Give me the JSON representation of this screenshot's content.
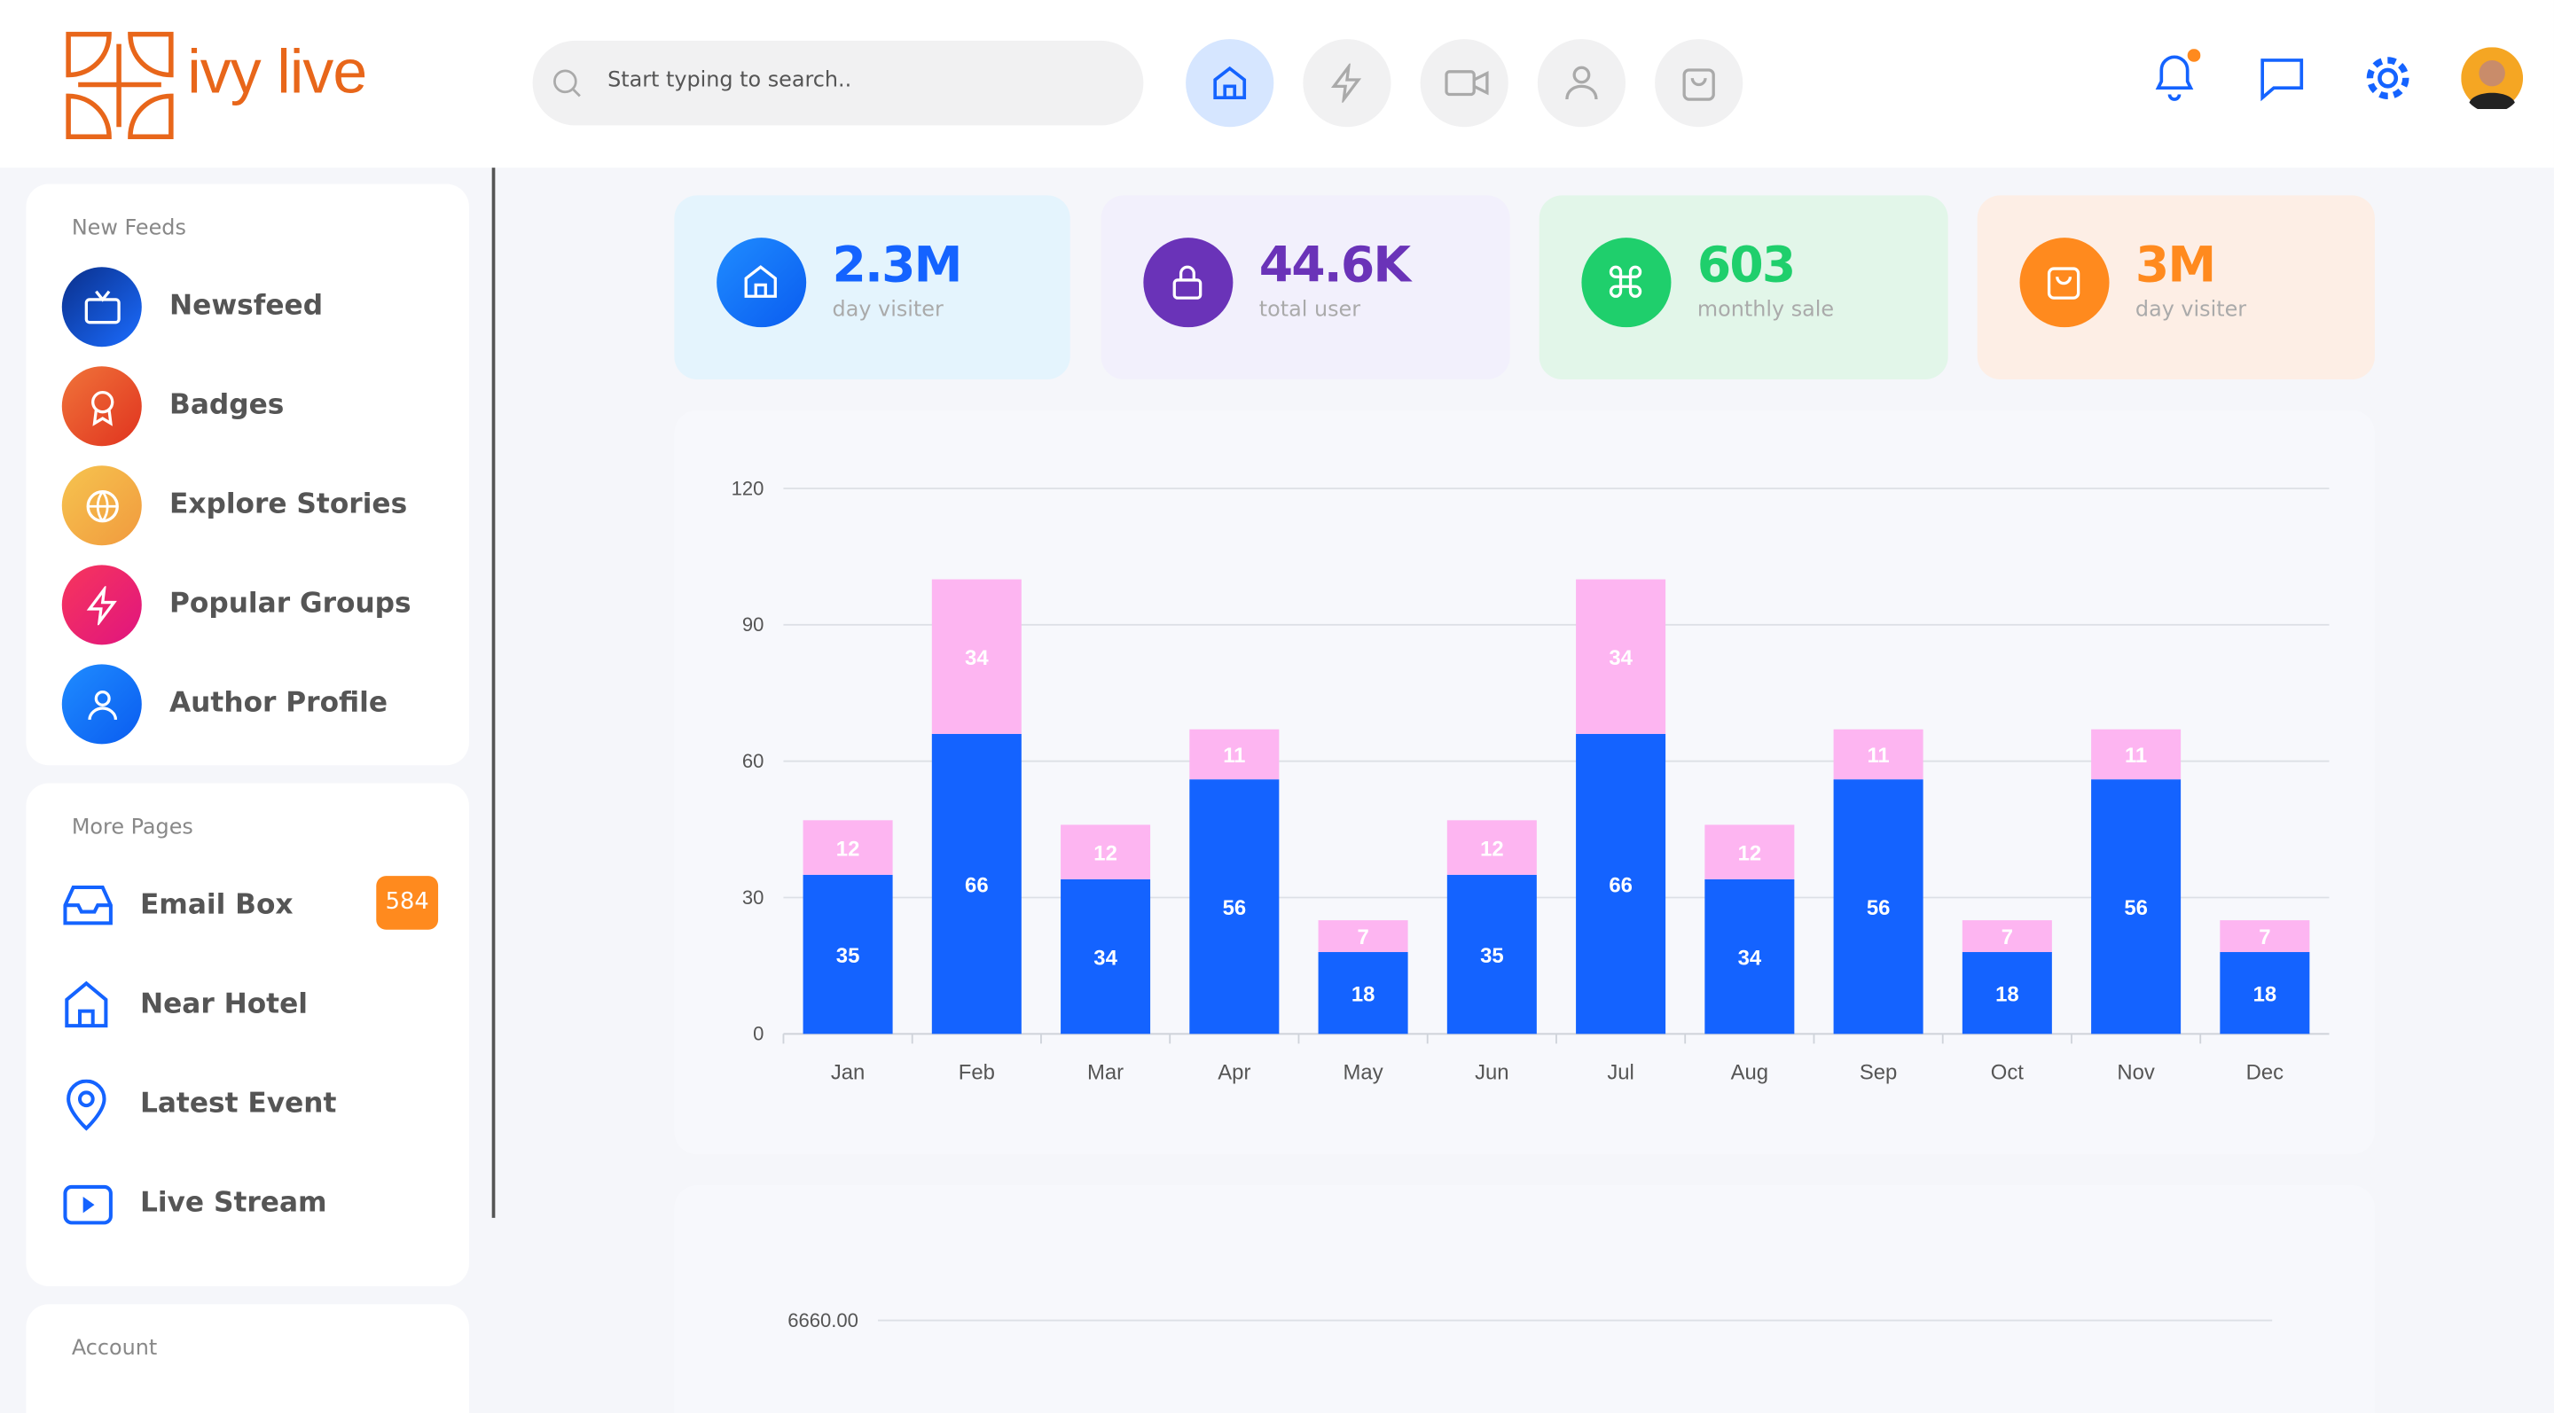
{
  "header": {
    "logo": "ivy live",
    "search_placeholder": "Start typing to search.."
  },
  "sidebar": [
    {
      "title": "New Feeds",
      "items": [
        "Newsfeed",
        "Badges",
        "Explore Stories",
        "Popular Groups",
        "Author Profile"
      ]
    },
    {
      "title": "More Pages",
      "items": [
        "Email Box",
        "Near Hotel",
        "Latest Event",
        "Live Stream"
      ],
      "badge": 584
    },
    {
      "title": "Account"
    }
  ],
  "stats": [
    {
      "value": "2.3M",
      "label": "day visiter"
    },
    {
      "value": "44.6K",
      "label": "total user"
    },
    {
      "value": "603",
      "label": "monthly sale"
    },
    {
      "value": "3M",
      "label": "day visiter"
    }
  ],
  "chart_data": [
    {
      "type": "bar",
      "stacked": true,
      "categories": [
        "Jan",
        "Feb",
        "Mar",
        "Apr",
        "May",
        "Jun",
        "Jul",
        "Aug",
        "Sep",
        "Oct",
        "Nov",
        "Dec"
      ],
      "series": [
        {
          "color": "#1463ff",
          "values": [
            35,
            66,
            34,
            56,
            18,
            35,
            66,
            34,
            56,
            18,
            56,
            18
          ]
        },
        {
          "color": "#fdb5f1",
          "values": [
            12,
            34,
            12,
            11,
            7,
            12,
            34,
            12,
            11,
            7,
            11,
            7
          ]
        }
      ],
      "ylim": [
        0,
        120
      ],
      "yticks": [
        0,
        30,
        60,
        90,
        120
      ],
      "grid": true
    },
    {
      "type": "bar",
      "yticks": [
        {
          "value": 6660,
          "label": "6660.00"
        }
      ],
      "grid": true
    }
  ]
}
